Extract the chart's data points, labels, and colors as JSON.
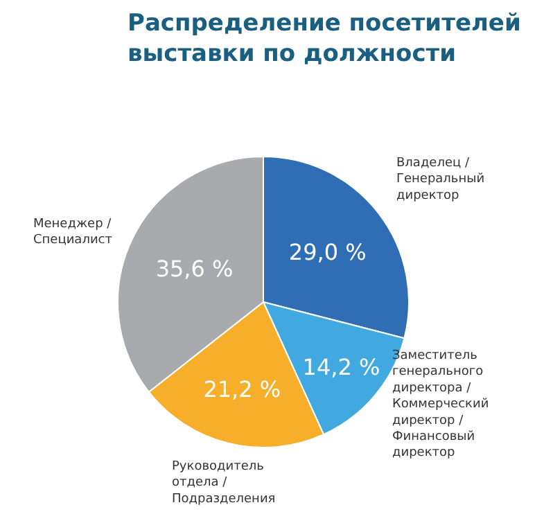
{
  "chart_data": {
    "type": "pie",
    "title": "Распределение посетителей\nвыставки по должности",
    "categories": [
      "Владелец /\nГенеральный\nдиректор",
      "Заместитель\nгенерального\nдиректора /\nКоммерческий\nдиректор /\nФинансовый\nдиректор",
      "Руководитель\nотдела /\nПодразделения",
      "Менеджер /\nСпециалист"
    ],
    "values": [
      29.0,
      14.2,
      21.2,
      35.6
    ],
    "colors": [
      "#2f6db5",
      "#42a8e0",
      "#f6ae2b",
      "#a8aaad"
    ],
    "value_labels": [
      "29,0 %",
      "14,2 %",
      "21,2 %",
      "35,6 %"
    ],
    "legend": false
  }
}
